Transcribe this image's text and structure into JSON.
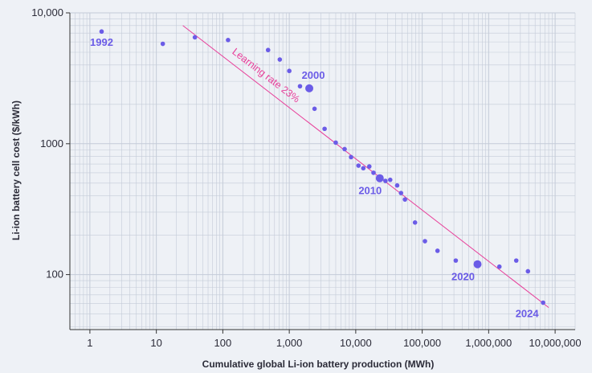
{
  "chart_data": {
    "type": "scatter",
    "x_scale": "log",
    "y_scale": "log",
    "xlim": [
      0.5,
      20000000
    ],
    "ylim": [
      38,
      10000
    ],
    "xlabel": "Cumulative global Li-ion battery production (MWh)",
    "ylabel": "Li-ion battery cell cost ($/kWh)",
    "x_ticks": [
      {
        "value": 1,
        "label": "1"
      },
      {
        "value": 10,
        "label": "10"
      },
      {
        "value": 100,
        "label": "100"
      },
      {
        "value": 1000,
        "label": "1,000"
      },
      {
        "value": 10000,
        "label": "10,000"
      },
      {
        "value": 100000,
        "label": "100,000"
      },
      {
        "value": 1000000,
        "label": "1,000,000"
      },
      {
        "value": 10000000,
        "label": "10,000,000"
      }
    ],
    "y_ticks": [
      {
        "value": 100,
        "label": "100"
      },
      {
        "value": 1000,
        "label": "1000"
      },
      {
        "value": 10000,
        "label": "10,000"
      }
    ],
    "grid": true,
    "colors": {
      "points": "#6b5ce7",
      "trend": "#e8409a",
      "axis": "#333333",
      "grid": "#c4cbd8",
      "background": "#eef1f6"
    },
    "points": [
      {
        "x": 1.5,
        "y": 7200,
        "label": "1992",
        "highlight": false
      },
      {
        "x": 12.5,
        "y": 5800,
        "highlight": false
      },
      {
        "x": 38,
        "y": 6500,
        "highlight": false
      },
      {
        "x": 120,
        "y": 6200,
        "highlight": false
      },
      {
        "x": 480,
        "y": 5200,
        "highlight": false
      },
      {
        "x": 720,
        "y": 4400,
        "highlight": false
      },
      {
        "x": 1000,
        "y": 3600,
        "highlight": false
      },
      {
        "x": 1450,
        "y": 2750,
        "highlight": false
      },
      {
        "x": 2000,
        "y": 2650,
        "label": "2000",
        "highlight": true
      },
      {
        "x": 2400,
        "y": 1850,
        "highlight": false
      },
      {
        "x": 3400,
        "y": 1300,
        "highlight": false
      },
      {
        "x": 5000,
        "y": 1020,
        "highlight": false
      },
      {
        "x": 6800,
        "y": 910,
        "highlight": false
      },
      {
        "x": 8500,
        "y": 790,
        "highlight": false
      },
      {
        "x": 11000,
        "y": 680,
        "highlight": false
      },
      {
        "x": 13000,
        "y": 650,
        "highlight": false
      },
      {
        "x": 16000,
        "y": 670,
        "highlight": false
      },
      {
        "x": 18500,
        "y": 600,
        "highlight": false
      },
      {
        "x": 23000,
        "y": 545,
        "label": "2010",
        "highlight": true
      },
      {
        "x": 28000,
        "y": 520,
        "highlight": false
      },
      {
        "x": 33000,
        "y": 530,
        "highlight": false
      },
      {
        "x": 42000,
        "y": 480,
        "highlight": false
      },
      {
        "x": 48000,
        "y": 420,
        "highlight": false
      },
      {
        "x": 55000,
        "y": 375,
        "highlight": false
      },
      {
        "x": 78000,
        "y": 250,
        "highlight": false
      },
      {
        "x": 110000,
        "y": 180,
        "highlight": false
      },
      {
        "x": 170000,
        "y": 152,
        "highlight": false
      },
      {
        "x": 320000,
        "y": 128,
        "highlight": false
      },
      {
        "x": 680000,
        "y": 120,
        "label": "2020",
        "highlight": true
      },
      {
        "x": 1450000,
        "y": 115,
        "highlight": false
      },
      {
        "x": 2600000,
        "y": 128,
        "highlight": false
      },
      {
        "x": 3900000,
        "y": 106,
        "highlight": false
      },
      {
        "x": 6600000,
        "y": 61,
        "label": "2024",
        "highlight": false
      }
    ],
    "trendline": {
      "label": "Learning rate 23%",
      "x": [
        25,
        8000000
      ],
      "y": [
        8000,
        56
      ]
    }
  }
}
